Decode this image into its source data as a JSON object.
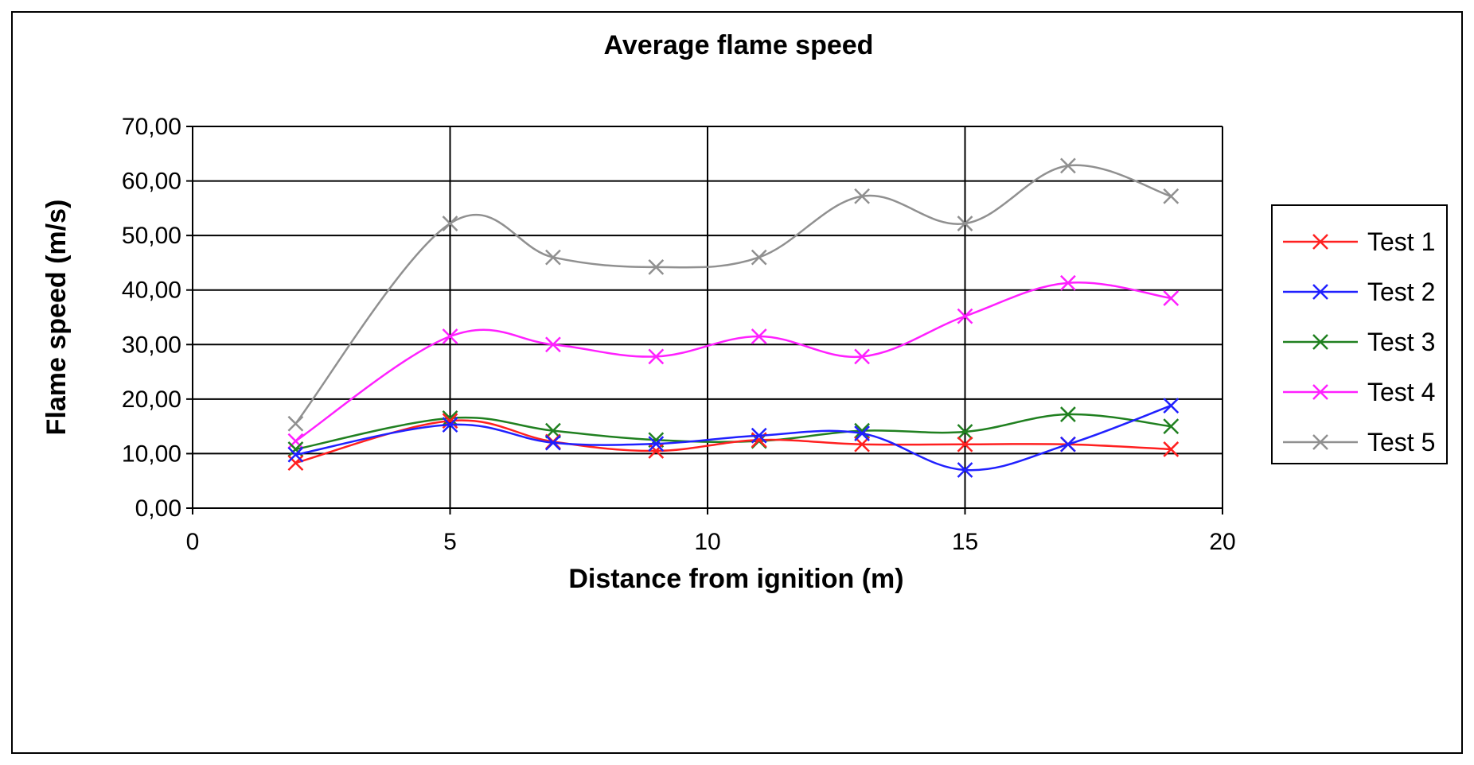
{
  "chart_data": {
    "type": "line",
    "title": "Average flame speed",
    "xlabel": "Distance from ignition (m)",
    "ylabel": "Flame speed (m/s)",
    "xlim": [
      0,
      20
    ],
    "ylim": [
      0,
      70
    ],
    "x_ticks": [
      "0",
      "5",
      "10",
      "15",
      "20"
    ],
    "y_ticks": [
      "0,00",
      "10,00",
      "20,00",
      "30,00",
      "40,00",
      "50,00",
      "60,00",
      "70,00"
    ],
    "grid": true,
    "legend_position": "right",
    "x": [
      2,
      5,
      7,
      9,
      11,
      13,
      15,
      17,
      19
    ],
    "series": [
      {
        "name": "Test 1",
        "color": "#ff2020",
        "values": [
          8.3,
          16.0,
          12.2,
          10.5,
          12.5,
          11.7,
          11.7,
          11.7,
          10.8
        ]
      },
      {
        "name": "Test 2",
        "color": "#2020ff",
        "values": [
          9.8,
          15.3,
          12.0,
          11.8,
          13.3,
          13.7,
          7.0,
          11.7,
          18.8
        ]
      },
      {
        "name": "Test 3",
        "color": "#208020",
        "values": [
          10.8,
          16.5,
          14.2,
          12.5,
          12.3,
          14.2,
          14.0,
          17.2,
          15.0
        ]
      },
      {
        "name": "Test 4",
        "color": "#ff20ff",
        "values": [
          12.3,
          31.5,
          30.0,
          27.8,
          31.5,
          27.8,
          35.2,
          41.3,
          38.5
        ]
      },
      {
        "name": "Test 5",
        "color": "#909090",
        "values": [
          15.5,
          52.2,
          46.0,
          44.2,
          46.0,
          57.2,
          52.2,
          62.8,
          57.2
        ]
      }
    ]
  }
}
